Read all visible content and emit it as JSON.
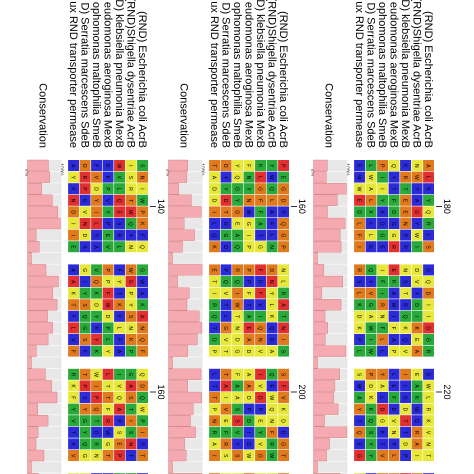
{
  "sequence_labels": [
    "(RND) Escherichia coli AcrB",
    "(RND)Shigella dysentriae AcrB",
    "(RND) klebsiella pneumonia MexB",
    "eudomonas aeroginosa MexB",
    "ophomonas maltophilia SmeB",
    "D) Serratia marcescens SdeB",
    "ux RND transporter permease"
  ],
  "conservation_label": "Conservation",
  "pct_high": "100%",
  "pct_low": "0%",
  "position_labels": [
    "140",
    "160",
    "180",
    "200",
    "220"
  ],
  "residue_colors": {
    "hydrophobic": "#2b2bd9",
    "polar": "#e8e83a",
    "glycine": "#e07a1c",
    "positive": "#e23030",
    "aromatic": "#2aaa3a",
    "other": "#7cc8e8"
  },
  "residue_letters": [
    "G",
    "A",
    "V",
    "L",
    "I",
    "P",
    "F",
    "Y",
    "W",
    "S",
    "T",
    "N",
    "Q",
    "D",
    "E",
    "K",
    "R"
  ],
  "conservation_bar_color": "#f5a9b0",
  "conservation_bg_color": "#e8e8e8"
}
